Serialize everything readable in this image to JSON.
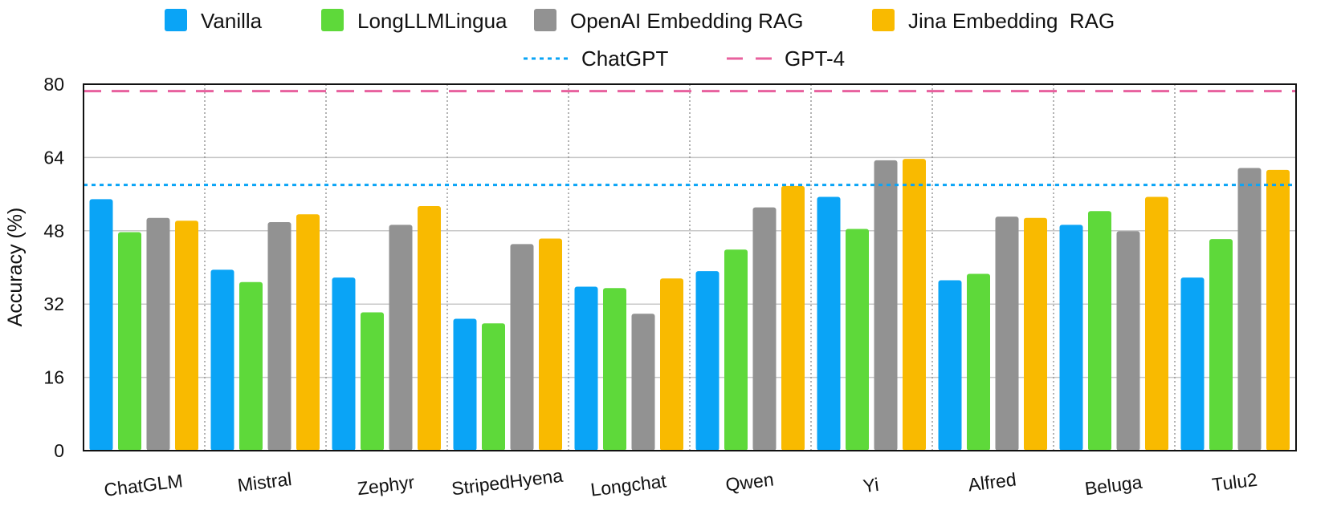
{
  "chart_data": {
    "type": "bar",
    "title": "",
    "xlabel": "",
    "ylabel": "Accuracy (%)",
    "ylim": [
      0,
      80
    ],
    "yticks": [
      "0",
      "16",
      "32",
      "48",
      "64",
      "80"
    ],
    "ytick_values": [
      0,
      16,
      32,
      48,
      64,
      80
    ],
    "grid": "horizontal",
    "legend_position": "top-center",
    "categories": [
      "ChatGLM",
      "Mistral",
      "Zephyr",
      "StripedHyena",
      "Longchat",
      "Qwen",
      "Yi",
      "Alfred",
      "Beluga",
      "Tulu2"
    ],
    "series": [
      {
        "name": "Vanilla",
        "color": "#0aa4f6",
        "values": [
          54.9,
          39.5,
          37.8,
          28.8,
          35.8,
          39.2,
          55.4,
          37.2,
          49.3,
          37.8
        ]
      },
      {
        "name": "LongLLMLingua",
        "color": "#5ed93a",
        "values": [
          47.7,
          36.8,
          30.2,
          27.8,
          35.5,
          43.9,
          48.4,
          38.6,
          52.3,
          46.2
        ]
      },
      {
        "name": "OpenAI Embedding RAG",
        "color": "#929292",
        "values": [
          50.8,
          49.9,
          49.3,
          45.1,
          29.9,
          53.1,
          63.4,
          51.1,
          47.9,
          61.7
        ]
      },
      {
        "name": "Jina Embedding  RAG",
        "color": "#f9ba00",
        "values": [
          50.2,
          51.6,
          53.4,
          46.3,
          37.6,
          57.8,
          63.7,
          50.8,
          55.4,
          61.3
        ]
      }
    ],
    "reference_lines": [
      {
        "name": "ChatGPT",
        "value": 58.0,
        "color": "#0aa4f6",
        "style": "dotted"
      },
      {
        "name": "GPT-4",
        "value": 78.5,
        "color": "#e8619e",
        "style": "dashed"
      }
    ]
  }
}
